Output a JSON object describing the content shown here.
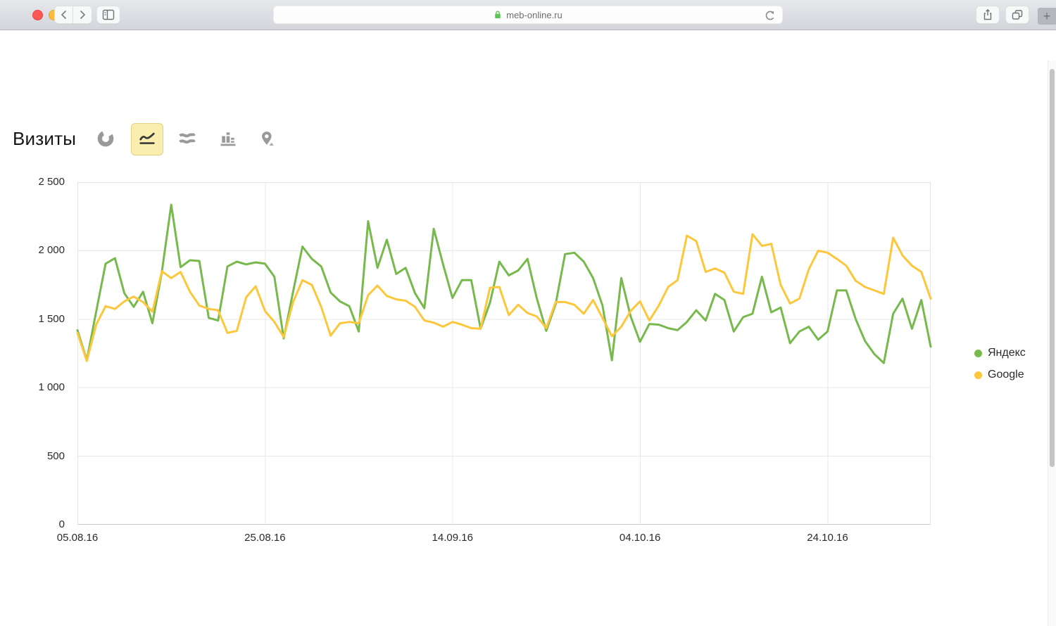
{
  "browser": {
    "url_text": "meb-online.ru",
    "new_tab_plus_glyph": "+",
    "icons": {
      "traffic_lights": [
        "close",
        "minimize",
        "zoom"
      ],
      "nav": [
        "back-chevron",
        "forward-chevron",
        "sidebar-toggle"
      ],
      "url_field": [
        "lock",
        "reload"
      ],
      "right_controls": [
        "share",
        "tabs-overview",
        "new-tab-plus"
      ]
    },
    "colors": {
      "traffic_red": "#fc5753",
      "traffic_yellow": "#fdbc40",
      "traffic_green": "#33c748",
      "lock_green": "#5fc457"
    }
  },
  "page": {
    "title": "Визиты",
    "chart_type_switcher": [
      {
        "name": "pie-chart",
        "selected": false
      },
      {
        "name": "line-chart",
        "selected": true
      },
      {
        "name": "stacked-area-chart",
        "selected": false
      },
      {
        "name": "column-chart",
        "selected": false
      },
      {
        "name": "map",
        "selected": false
      }
    ],
    "selected_button_bg": "#faeeae"
  },
  "chart_data": {
    "type": "line",
    "title": "Визиты",
    "xlabel": "",
    "ylabel": "",
    "ylim": [
      0,
      2500
    ],
    "grid": true,
    "legend_position": "right",
    "ytick_values": [
      0,
      500,
      1000,
      1500,
      2000,
      2500
    ],
    "ytick_labels": [
      "0",
      "500",
      "1 000",
      "1 500",
      "2 000",
      "2 500"
    ],
    "xtick_day_indices": [
      0,
      20,
      40,
      60,
      80
    ],
    "xtick_labels": [
      "05.08.16",
      "25.08.16",
      "14.09.16",
      "04.10.16",
      "24.10.16"
    ],
    "x_description": "daily values from 05.08.16, one point per day, 92 days",
    "series": [
      {
        "name": "Яндекс",
        "color": "#77b94d",
        "values": [
          1420,
          1200,
          1555,
          1905,
          1945,
          1690,
          1590,
          1700,
          1470,
          1845,
          2335,
          1880,
          1930,
          1925,
          1510,
          1490,
          1885,
          1920,
          1900,
          1915,
          1905,
          1810,
          1360,
          1700,
          2030,
          1940,
          1885,
          1695,
          1630,
          1595,
          1410,
          2215,
          1875,
          2080,
          1830,
          1875,
          1690,
          1580,
          2160,
          1900,
          1655,
          1785,
          1785,
          1430,
          1620,
          1920,
          1820,
          1855,
          1940,
          1650,
          1415,
          1610,
          1975,
          1985,
          1920,
          1800,
          1600,
          1200,
          1800,
          1520,
          1335,
          1465,
          1460,
          1435,
          1420,
          1480,
          1565,
          1490,
          1685,
          1640,
          1410,
          1515,
          1540,
          1810,
          1550,
          1585,
          1325,
          1410,
          1445,
          1350,
          1410,
          1710,
          1710,
          1500,
          1340,
          1245,
          1180,
          1540,
          1650,
          1430,
          1640,
          1300
        ]
      },
      {
        "name": "Google",
        "color": "#fdc73c",
        "values": [
          1400,
          1195,
          1460,
          1595,
          1575,
          1630,
          1665,
          1625,
          1555,
          1850,
          1800,
          1845,
          1700,
          1600,
          1575,
          1565,
          1400,
          1415,
          1660,
          1740,
          1560,
          1480,
          1370,
          1625,
          1785,
          1750,
          1590,
          1380,
          1470,
          1480,
          1470,
          1675,
          1745,
          1670,
          1645,
          1635,
          1590,
          1490,
          1475,
          1445,
          1480,
          1460,
          1435,
          1430,
          1730,
          1735,
          1530,
          1605,
          1545,
          1520,
          1435,
          1625,
          1625,
          1605,
          1540,
          1640,
          1510,
          1375,
          1445,
          1560,
          1630,
          1490,
          1600,
          1735,
          1785,
          2110,
          2070,
          1845,
          1870,
          1840,
          1700,
          1685,
          2120,
          2035,
          2050,
          1750,
          1615,
          1650,
          1865,
          2000,
          1985,
          1940,
          1890,
          1780,
          1735,
          1710,
          1685,
          2095,
          1965,
          1890,
          1845,
          1650
        ]
      }
    ]
  }
}
